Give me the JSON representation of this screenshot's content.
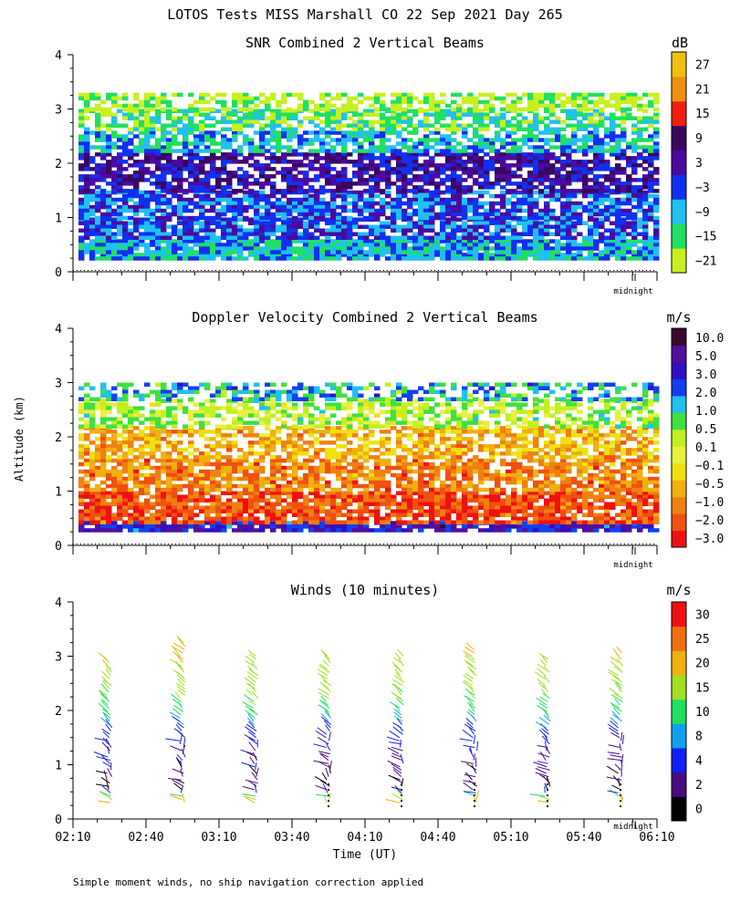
{
  "figure_title": "LOTOS Tests MISS Marshall CO  22 Sep 2021 Day 265",
  "y_axis_label": "Altitude (km)",
  "x_axis_label": "Time (UT)",
  "footnote": "Simple moment winds, no ship navigation correction applied",
  "midnight_label": "midnight",
  "colors": {
    "snr_palette": [
      "#c8f020",
      "#20e060",
      "#20c0f0",
      "#1030f0",
      "#4a0aa0",
      "#3a0660",
      "#f02010",
      "#f09010",
      "#f0c010"
    ],
    "doppler_palette": [
      "#f01010",
      "#f05010",
      "#f08010",
      "#f0b010",
      "#f0e010",
      "#e8f040",
      "#c0f020",
      "#40e040",
      "#20c0f0",
      "#1040f0",
      "#3010c0",
      "#5010a0",
      "#3a0630"
    ],
    "winds_palette": [
      "#000000",
      "#4a0a80",
      "#1020f0",
      "#10a0f0",
      "#20e060",
      "#a0e020",
      "#f0b010",
      "#f07010",
      "#f01010"
    ]
  },
  "chart_data": [
    {
      "type": "heatmap",
      "title": "SNR Combined 2 Vertical Beams",
      "units": "dB",
      "x_ticks": [
        "02:10",
        "02:40",
        "03:10",
        "03:40",
        "04:10",
        "04:40",
        "05:10",
        "05:40",
        "06:10"
      ],
      "x_range_hours_ut": [
        2.1667,
        6.1667
      ],
      "ylim": [
        0,
        4
      ],
      "y_ticks": [
        0,
        1,
        2,
        3,
        4
      ],
      "colorbar_labels": [
        "27",
        "21",
        "15",
        "9",
        "3",
        "−3",
        "−9",
        "−15",
        "−21"
      ],
      "layers": [
        {
          "z_min": 0.25,
          "z_max": 0.35,
          "level": 2
        },
        {
          "z_min": 0.35,
          "z_max": 0.6,
          "level": 2
        },
        {
          "z_min": 0.6,
          "z_max": 1.0,
          "level": 3
        },
        {
          "z_min": 1.0,
          "z_max": 1.5,
          "level": 3
        },
        {
          "z_min": 1.5,
          "z_max": 2.2,
          "level": 4
        },
        {
          "z_min": 2.2,
          "z_max": 2.6,
          "level": 2
        },
        {
          "z_min": 2.6,
          "z_max": 3.0,
          "level": 1
        },
        {
          "z_min": 3.0,
          "z_max": 3.3,
          "level": 0
        }
      ]
    },
    {
      "type": "heatmap",
      "title": "Doppler Velocity Combined 2 Vertical Beams",
      "units": "m/s",
      "x_ticks": [
        "02:10",
        "02:40",
        "03:10",
        "03:40",
        "04:10",
        "04:40",
        "05:10",
        "05:40",
        "06:10"
      ],
      "ylim": [
        0,
        4
      ],
      "y_ticks": [
        0,
        1,
        2,
        3,
        4
      ],
      "colorbar_labels": [
        "10.0",
        "5.0",
        "3.0",
        "2.0",
        "1.0",
        "0.5",
        "0.1",
        "−0.1",
        "−0.5",
        "−1.0",
        "−2.0",
        "−3.0"
      ],
      "layers": [
        {
          "z_min": 0.25,
          "z_max": 0.45,
          "level": 10
        },
        {
          "z_min": 0.45,
          "z_max": 1.0,
          "level": 1
        },
        {
          "z_min": 1.0,
          "z_max": 1.6,
          "level": 2
        },
        {
          "z_min": 1.6,
          "z_max": 2.2,
          "level": 3
        },
        {
          "z_min": 2.2,
          "z_max": 2.7,
          "level": 6
        },
        {
          "z_min": 2.7,
          "z_max": 3.0,
          "level": 8
        }
      ]
    },
    {
      "type": "wind-barb",
      "title": "Winds (10 minutes)",
      "units": "m/s",
      "x_ticks": [
        "02:10",
        "02:40",
        "03:10",
        "03:40",
        "04:10",
        "04:40",
        "05:10",
        "05:40",
        "06:10"
      ],
      "ylim": [
        0,
        4
      ],
      "y_ticks": [
        0,
        1,
        2,
        3,
        4
      ],
      "colorbar_labels": [
        "30",
        "25",
        "20",
        "15",
        "10",
        "8",
        "4",
        "2",
        "0"
      ],
      "profile_times": [
        "02:25",
        "02:55",
        "03:25",
        "03:55",
        "04:25",
        "04:55",
        "05:25",
        "05:55"
      ],
      "profile_top_km": [
        2.95,
        3.3,
        3.05,
        3.05,
        3.05,
        3.15,
        3.0,
        3.1
      ],
      "speed_profile": [
        {
          "z_km": 0.35,
          "speed_ms": 21
        },
        {
          "z_km": 0.5,
          "speed_ms": 2
        },
        {
          "z_km": 1.0,
          "speed_ms": 3
        },
        {
          "z_km": 1.5,
          "speed_ms": 5
        },
        {
          "z_km": 1.8,
          "speed_ms": 9
        },
        {
          "z_km": 2.1,
          "speed_ms": 14
        },
        {
          "z_km": 2.5,
          "speed_ms": 17
        },
        {
          "z_km": 3.0,
          "speed_ms": 20
        }
      ]
    }
  ]
}
